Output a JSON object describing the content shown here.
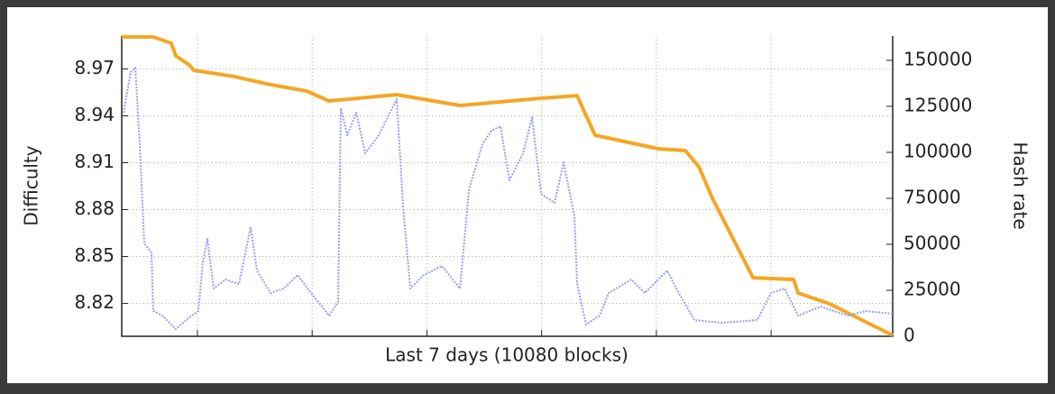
{
  "chart_data": {
    "type": "line",
    "xlabel": "Last 7 days (10080 blocks)",
    "ylabel": "Difficulty",
    "y2label": "Hash rate",
    "xlim": [
      0,
      10080
    ],
    "xticks": [
      990,
      2490,
      3990,
      5490,
      6990,
      8490
    ],
    "ylim": [
      8.799,
      8.991
    ],
    "yticks": [
      8.82,
      8.85,
      8.88,
      8.91,
      8.94,
      8.97
    ],
    "y2lim": [
      0,
      163200
    ],
    "y2ticks": [
      0,
      25000,
      50000,
      75000,
      100000,
      125000,
      150000
    ],
    "grid": true,
    "series": [
      {
        "name": "Difficulty",
        "color": "#f5a623",
        "axis": "y",
        "x": [
          0,
          413,
          648,
          707,
          884,
          943,
          1474,
          1946,
          2417,
          2712,
          3596,
          4422,
          5483,
          5954,
          6190,
          7015,
          7369,
          7546,
          7723,
          8254,
          8784,
          8843,
          9255,
          9609,
          10080
        ],
        "values": [
          8.9904,
          8.9904,
          8.9864,
          8.9783,
          8.9725,
          8.9691,
          8.9651,
          8.9599,
          8.9558,
          8.9495,
          8.9535,
          8.9466,
          8.9512,
          8.9529,
          8.9276,
          8.9189,
          8.9178,
          8.9074,
          8.8872,
          8.8365,
          8.8353,
          8.8267,
          8.8198,
          8.8111,
          8.7996
        ]
      },
      {
        "name": "Hash rate",
        "color": "#9a9cf6",
        "axis": "y2",
        "x": [
          24,
          118,
          177,
          236,
          295,
          389,
          413,
          531,
          707,
          884,
          1002,
          1061,
          1120,
          1203,
          1356,
          1533,
          1686,
          1768,
          1945,
          2122,
          2299,
          2476,
          2712,
          2830,
          2865,
          2948,
          3066,
          3184,
          3360,
          3596,
          3679,
          3773,
          3950,
          4186,
          4422,
          4540,
          4716,
          4834,
          4952,
          5070,
          5247,
          5365,
          5483,
          5660,
          5778,
          5919,
          5954,
          6072,
          6249,
          6367,
          6662,
          6839,
          7133,
          7251,
          7487,
          7841,
          8312,
          8489,
          8666,
          8843,
          9137,
          9491,
          9727,
          10080
        ],
        "values": [
          121520,
          143570,
          146020,
          104370,
          50470,
          45570,
          13720,
          11270,
          3920,
          10290,
          13720,
          40670,
          52920,
          25970,
          30870,
          28420,
          59290,
          35770,
          23520,
          25970,
          33320,
          23520,
          11270,
          18620,
          123970,
          109270,
          121520,
          99470,
          109270,
          128870,
          70070,
          25970,
          33320,
          38220,
          25970,
          79870,
          104370,
          111720,
          114170,
          84770,
          99470,
          119070,
          77420,
          72520,
          94570,
          65170,
          28420,
          6370,
          11270,
          23520,
          30870,
          23520,
          35770,
          25970,
          8820,
          7350,
          8820,
          23520,
          25970,
          11270,
          16170,
          11270,
          13720,
          12250
        ]
      }
    ]
  }
}
